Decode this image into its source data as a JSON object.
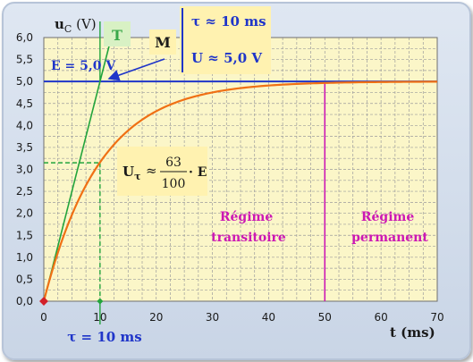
{
  "chart_data": {
    "type": "line",
    "ylabel_main": "u",
    "ylabel_sub": "C",
    "ylabel_unit": " (V)",
    "xlabel": "t (ms)",
    "x_ticks": [
      "0",
      "10",
      "20",
      "30",
      "40",
      "50",
      "60",
      "70"
    ],
    "y_ticks": [
      "0,0",
      "0,5",
      "1,0",
      "1,5",
      "2,0",
      "2,5",
      "3,0",
      "3,5",
      "4,0",
      "4,5",
      "5,0",
      "5,5",
      "6,0"
    ],
    "xlim": [
      0,
      70
    ],
    "ylim": [
      0,
      6
    ],
    "grid": true,
    "series": [
      {
        "kind": "charging-curve",
        "color": "#f07014",
        "E": 5.0,
        "tau": 10,
        "x": [
          0,
          2.5,
          5,
          7.5,
          10,
          15,
          20,
          25,
          30,
          35,
          40,
          45,
          50,
          55,
          60,
          65,
          70
        ],
        "y": [
          0,
          1.11,
          1.97,
          2.64,
          3.16,
          3.88,
          4.32,
          4.59,
          4.75,
          4.85,
          4.91,
          4.94,
          4.97,
          4.98,
          4.99,
          4.99,
          5.0
        ]
      },
      {
        "kind": "tangent-at-origin",
        "color": "#22a43c",
        "x": [
          0,
          12
        ],
        "y": [
          0,
          6
        ]
      },
      {
        "kind": "asymptote",
        "color": "#1f35c9",
        "y": 5.0
      },
      {
        "kind": "regime-boundary",
        "color": "#cc18b4",
        "x": 50
      }
    ],
    "guide_point": {
      "x": 10,
      "y": 3.15
    },
    "annotations": {
      "T_label": "T",
      "M_label": "M",
      "E_label": "E = 5,0 V",
      "tau_box": "τ ≈ 10 ms",
      "U_box": "U ≈ 5,0 V",
      "tau_axis_label": "τ = 10 ms",
      "formula_left": "U",
      "formula_sub": "τ",
      "formula_approx": "≈",
      "formula_num": "63",
      "formula_den": "100",
      "formula_right": "· E",
      "regime1_line1": "Régime",
      "regime1_line2": "transitoire",
      "regime2_line1": "Régime",
      "regime2_line2": "permanent"
    },
    "colors": {
      "plot_background": "#fbf6c8",
      "grid": "#9c9c9c",
      "axis_text": "#1a1a1a",
      "annotation_box": "#fff2b0",
      "T_box": "#d8f1c4",
      "tau_label": "#1f35c9",
      "regime_text": "#cc18b4"
    }
  }
}
